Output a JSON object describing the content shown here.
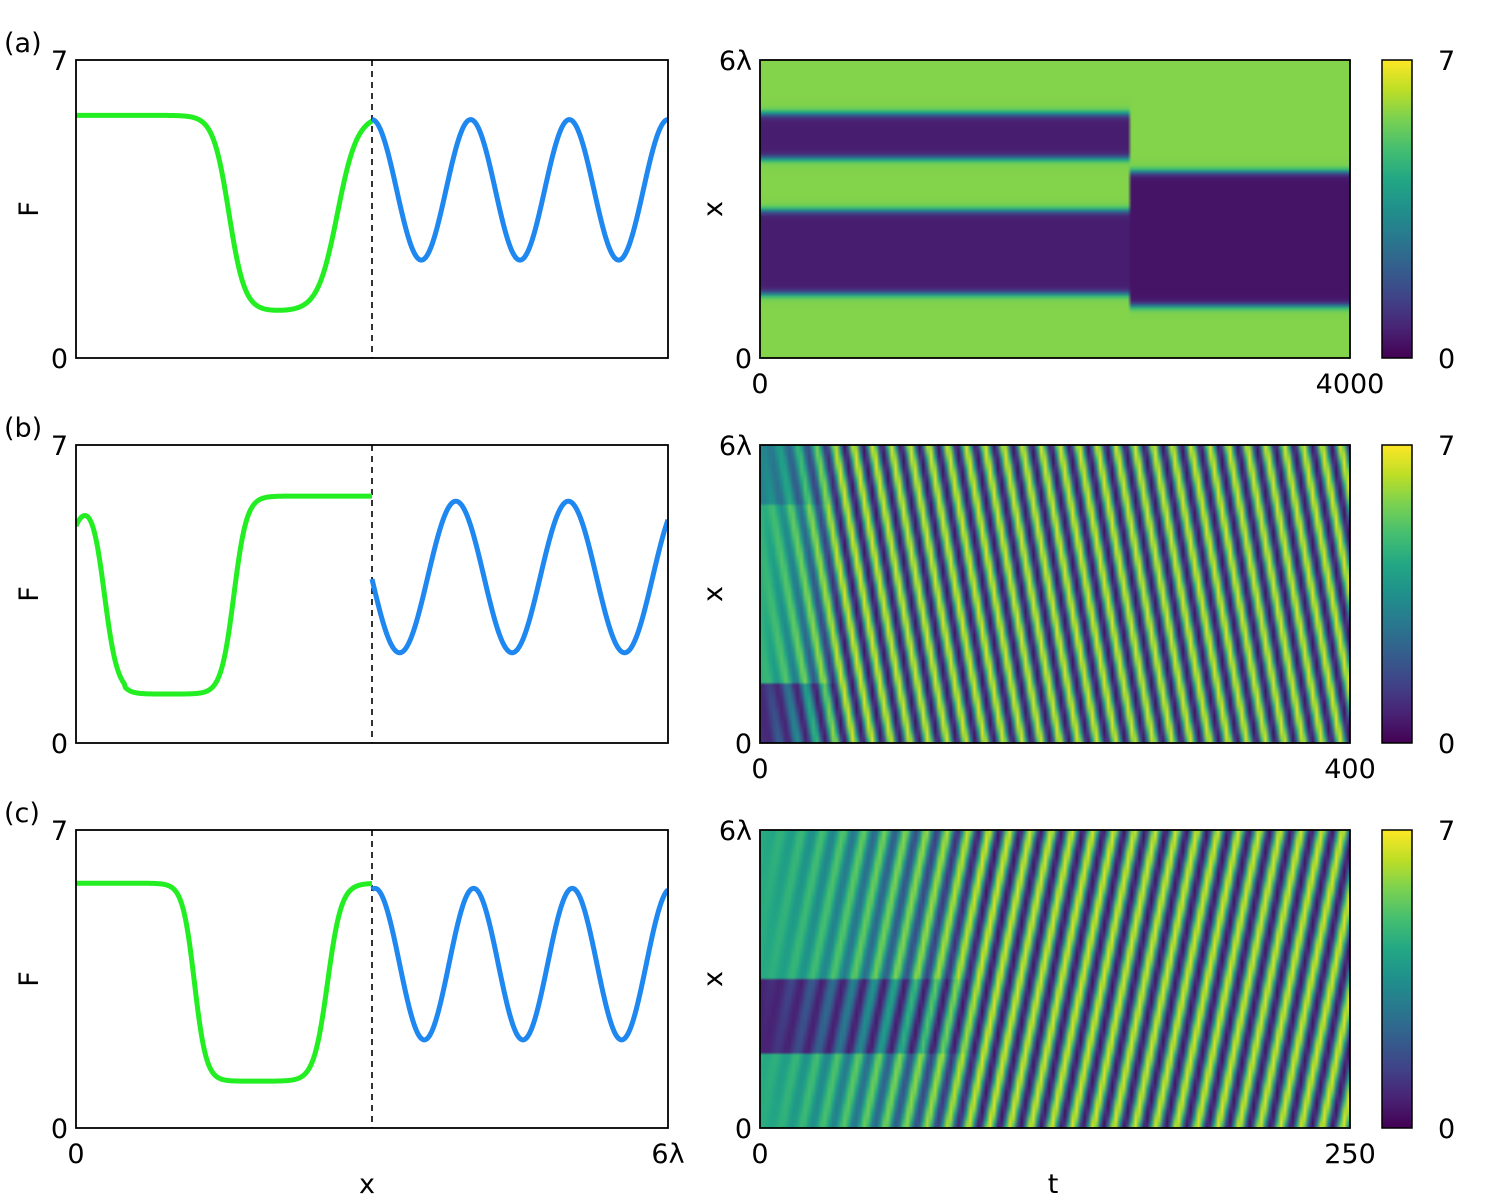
{
  "chart_data": [
    {
      "type": "line",
      "panel": "(a)",
      "ylabel": "F",
      "xlabel": "",
      "ylim": [
        0,
        7
      ],
      "xlim": [
        0,
        6
      ],
      "x_ticks": [],
      "y_ticks": [
        "0",
        "7"
      ],
      "divider_x": 3,
      "series": [
        {
          "color": "#22ee22",
          "profile": "tanh_front",
          "high": 5.7,
          "low": 1.1,
          "drop_center": 1.55,
          "drop_width": 0.16,
          "rise_center": 2.65,
          "rise_width": 0.2,
          "x_range": [
            0,
            3
          ]
        },
        {
          "color": "#1e88f0",
          "profile": "sine",
          "center": 3.95,
          "amplitude": 1.65,
          "peak_x": 3.0,
          "period": 1.0,
          "x_range": [
            3,
            6
          ]
        }
      ]
    },
    {
      "type": "heatmap",
      "panel": "(a)",
      "xlabel": "",
      "ylabel": "x",
      "x_ticks": [
        "0",
        "4000"
      ],
      "y_ticks": [
        "0",
        "6λ"
      ],
      "xlim": [
        0,
        4000
      ],
      "ylim_label": [
        "0",
        "6λ"
      ],
      "colorbar": {
        "min": 0,
        "max": 7,
        "ticks": [
          "0",
          "7"
        ],
        "colormap": "viridis"
      },
      "pattern": {
        "kind": "stationary_bands",
        "background": 5.7,
        "switch_t": 2500,
        "before": [
          {
            "center": 0.355,
            "width": 0.14,
            "value": 0.6
          },
          {
            "center": 0.745,
            "width": 0.075,
            "value": 0.6
          }
        ],
        "after": [
          {
            "center": 0.4,
            "width": 0.225,
            "value": 0.4
          }
        ]
      }
    },
    {
      "type": "line",
      "panel": "(b)",
      "ylabel": "F",
      "xlabel": "",
      "ylim": [
        0,
        7
      ],
      "xlim": [
        0,
        6
      ],
      "x_ticks": [],
      "y_ticks": [
        "0",
        "7"
      ],
      "divider_x": 3,
      "series": [
        {
          "color": "#22ee22",
          "profile": "tanh_front",
          "high": 5.8,
          "low": 1.15,
          "start_value": 5.1,
          "drop_center": 0.28,
          "drop_width": 0.13,
          "rise_center": 1.6,
          "rise_width": 0.13,
          "x_range": [
            0,
            3
          ]
        },
        {
          "color": "#1e88f0",
          "profile": "sine",
          "center": 3.9,
          "amplitude": 1.78,
          "peak_x": 3.85,
          "period": 1.14,
          "x_range": [
            3,
            6
          ]
        }
      ]
    },
    {
      "type": "heatmap",
      "panel": "(b)",
      "xlabel": "",
      "ylabel": "x",
      "x_ticks": [
        "0",
        "400"
      ],
      "y_ticks": [
        "0",
        "6λ"
      ],
      "xlim": [
        0,
        400
      ],
      "ylim_label": [
        "0",
        "6λ"
      ],
      "colorbar": {
        "min": 0,
        "max": 7,
        "ticks": [
          "0",
          "7"
        ],
        "colormap": "viridis"
      },
      "pattern": {
        "kind": "traveling_waves",
        "direction": "down",
        "stripes_across": 30,
        "transient_fraction": 0.14
      }
    },
    {
      "type": "line",
      "panel": "(c)",
      "ylabel": "F",
      "xlabel": "x",
      "ylim": [
        0,
        7
      ],
      "xlim": [
        0,
        6
      ],
      "x_ticks": [
        "0",
        "6λ"
      ],
      "y_ticks": [
        "0",
        "7"
      ],
      "divider_x": 3,
      "series": [
        {
          "color": "#22ee22",
          "profile": "tanh_front",
          "high": 5.75,
          "low": 1.1,
          "drop_center": 1.2,
          "drop_width": 0.12,
          "rise_center": 2.55,
          "rise_width": 0.14,
          "x_range": [
            0,
            3
          ]
        },
        {
          "color": "#1e88f0",
          "profile": "sine",
          "center": 3.85,
          "amplitude": 1.78,
          "peak_x": 3.03,
          "period": 1.0,
          "x_range": [
            3,
            6
          ]
        }
      ]
    },
    {
      "type": "heatmap",
      "panel": "(c)",
      "xlabel": "t",
      "ylabel": "x",
      "x_ticks": [
        "0",
        "250"
      ],
      "y_ticks": [
        "0",
        "6λ"
      ],
      "xlim": [
        0,
        250
      ],
      "ylim_label": [
        "0",
        "6λ"
      ],
      "colorbar": {
        "min": 0,
        "max": 7,
        "ticks": [
          "0",
          "7"
        ],
        "colormap": "viridis"
      },
      "pattern": {
        "kind": "traveling_waves",
        "direction": "up",
        "stripes_across": 27,
        "transient_fraction": 0.38
      }
    }
  ]
}
